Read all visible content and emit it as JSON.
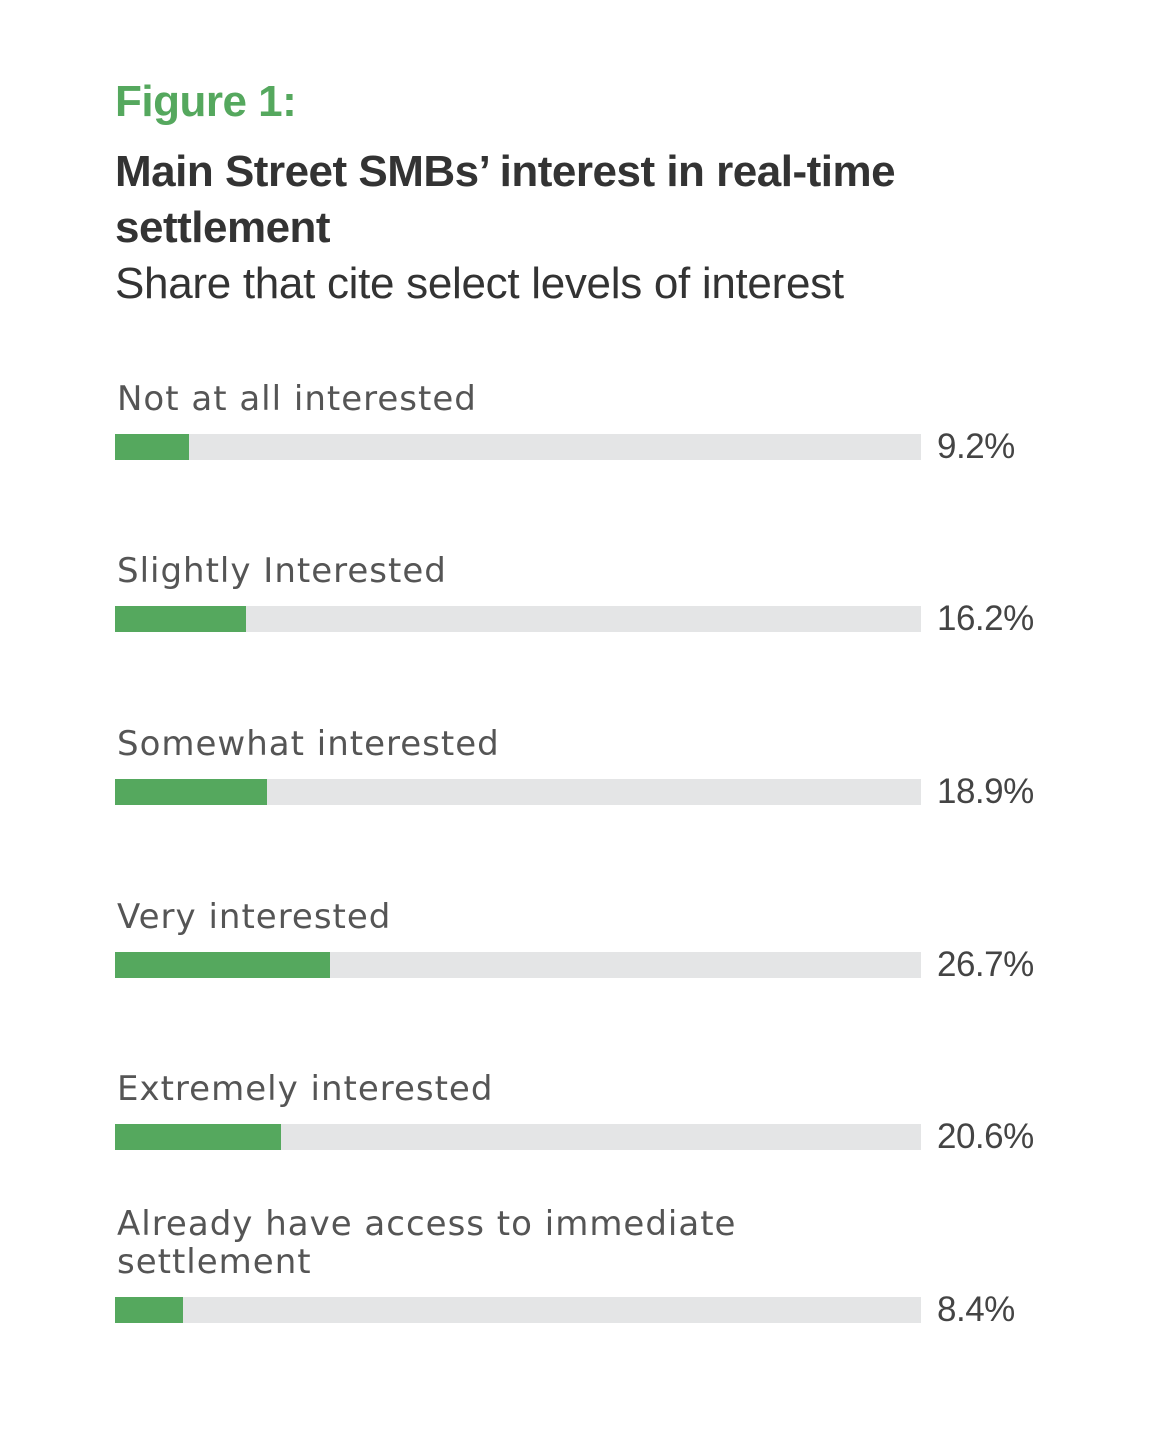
{
  "figure_label": "Figure 1:",
  "chart_data": {
    "type": "bar",
    "orientation": "horizontal",
    "title": "Main Street SMBs’ interest in real-time settlement",
    "subtitle": "Share that cite select levels of interest",
    "categories": [
      "Not at all interested",
      "Slightly Interested",
      "Somewhat interested",
      "Very interested",
      "Extremely interested",
      "Already have access to immediate settlement"
    ],
    "values": [
      9.2,
      16.2,
      18.9,
      26.7,
      20.6,
      8.4
    ],
    "value_labels": [
      "9.2%",
      "16.2%",
      "18.9%",
      "26.7%",
      "20.6%",
      "8.4%"
    ],
    "xlim": [
      0,
      100
    ],
    "grid": false,
    "legend": "none",
    "colors": {
      "bar": "#55a85e",
      "track": "#e4e5e6",
      "figure_label": "#55a85e"
    }
  }
}
